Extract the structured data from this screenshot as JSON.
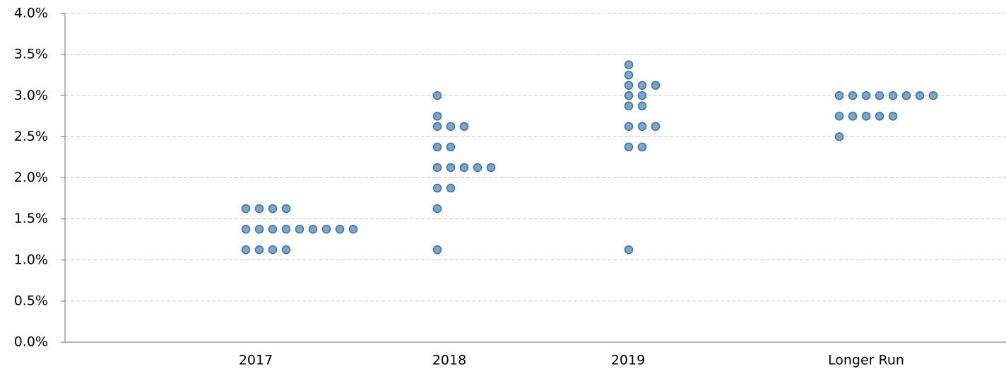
{
  "chart_data": {
    "type": "dot",
    "categories": [
      "2017",
      "2018",
      "2019",
      "Longer Run"
    ],
    "values": [
      [
        1.625,
        1.625,
        1.625,
        1.625,
        1.375,
        1.375,
        1.375,
        1.375,
        1.375,
        1.375,
        1.375,
        1.375,
        1.375,
        1.125,
        1.125,
        1.125,
        1.125
      ],
      [
        3.0,
        2.75,
        2.625,
        2.625,
        2.625,
        2.375,
        2.375,
        2.125,
        2.125,
        2.125,
        2.125,
        2.125,
        1.875,
        1.875,
        1.625,
        1.125
      ],
      [
        3.375,
        3.25,
        3.125,
        3.125,
        3.125,
        3.0,
        3.0,
        2.875,
        2.875,
        2.625,
        2.625,
        2.625,
        2.375,
        2.375,
        1.125
      ],
      [
        3.0,
        3.0,
        3.0,
        3.0,
        3.0,
        3.0,
        3.0,
        3.0,
        2.75,
        2.75,
        2.75,
        2.75,
        2.75,
        2.5
      ]
    ],
    "color": "#7ba7cd",
    "edge_color": "#3f6f98",
    "ylim": [
      0,
      4
    ],
    "yticks": [
      {
        "value": 0,
        "label": "0.0%"
      },
      {
        "value": 0.5,
        "label": "0.5%"
      },
      {
        "value": 1,
        "label": "1.0%"
      },
      {
        "value": 1.5,
        "label": "1.5%"
      },
      {
        "value": 2,
        "label": "2.0%"
      },
      {
        "value": 2.5,
        "label": "2.5%"
      },
      {
        "value": 3,
        "label": "3.0%"
      },
      {
        "value": 3.5,
        "label": "3.5%"
      },
      {
        "value": 4,
        "label": "4.0%"
      }
    ],
    "grid": true
  }
}
